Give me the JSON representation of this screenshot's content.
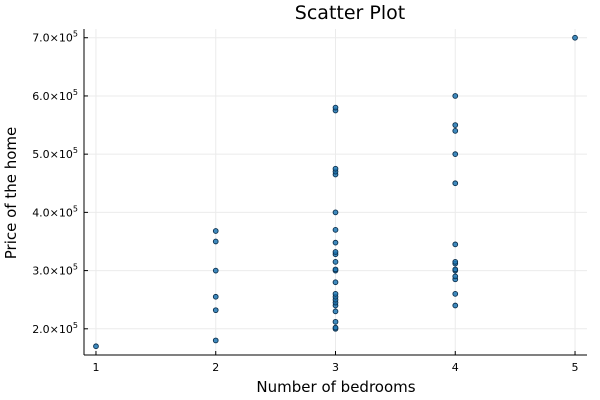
{
  "chart_data": {
    "type": "scatter",
    "title": "Scatter Plot",
    "xlabel": "Number of bedrooms",
    "ylabel": "Price of the home",
    "xlim": [
      0.9,
      5.1
    ],
    "ylim": [
      155000,
      715000
    ],
    "xticks": [
      1,
      2,
      3,
      4,
      5
    ],
    "yticks": [
      {
        "value": 200000,
        "mantissa": "2.0×10",
        "exp": "5"
      },
      {
        "value": 300000,
        "mantissa": "3.0×10",
        "exp": "5"
      },
      {
        "value": 400000,
        "mantissa": "4.0×10",
        "exp": "5"
      },
      {
        "value": 500000,
        "mantissa": "5.0×10",
        "exp": "5"
      },
      {
        "value": 600000,
        "mantissa": "6.0×10",
        "exp": "5"
      },
      {
        "value": 700000,
        "mantissa": "7.0×10",
        "exp": "5"
      }
    ],
    "grid": true,
    "legend": "none",
    "color": "#1f77b4",
    "points": [
      [
        1,
        170000
      ],
      [
        2,
        180000
      ],
      [
        2,
        232000
      ],
      [
        2,
        255000
      ],
      [
        2,
        300000
      ],
      [
        2,
        350000
      ],
      [
        2,
        368000
      ],
      [
        3,
        200000
      ],
      [
        3,
        202000
      ],
      [
        3,
        212000
      ],
      [
        3,
        230000
      ],
      [
        3,
        240000
      ],
      [
        3,
        245000
      ],
      [
        3,
        250000
      ],
      [
        3,
        255000
      ],
      [
        3,
        260000
      ],
      [
        3,
        280000
      ],
      [
        3,
        300000
      ],
      [
        3,
        302000
      ],
      [
        3,
        315000
      ],
      [
        3,
        328000
      ],
      [
        3,
        332000
      ],
      [
        3,
        348000
      ],
      [
        3,
        370000
      ],
      [
        3,
        400000
      ],
      [
        3,
        465000
      ],
      [
        3,
        470000
      ],
      [
        3,
        475000
      ],
      [
        3,
        575000
      ],
      [
        3,
        580000
      ],
      [
        4,
        240000
      ],
      [
        4,
        260000
      ],
      [
        4,
        285000
      ],
      [
        4,
        290000
      ],
      [
        4,
        300000
      ],
      [
        4,
        302000
      ],
      [
        4,
        312000
      ],
      [
        4,
        315000
      ],
      [
        4,
        345000
      ],
      [
        4,
        450000
      ],
      [
        4,
        500000
      ],
      [
        4,
        540000
      ],
      [
        4,
        550000
      ],
      [
        4,
        600000
      ],
      [
        5,
        700000
      ]
    ]
  }
}
